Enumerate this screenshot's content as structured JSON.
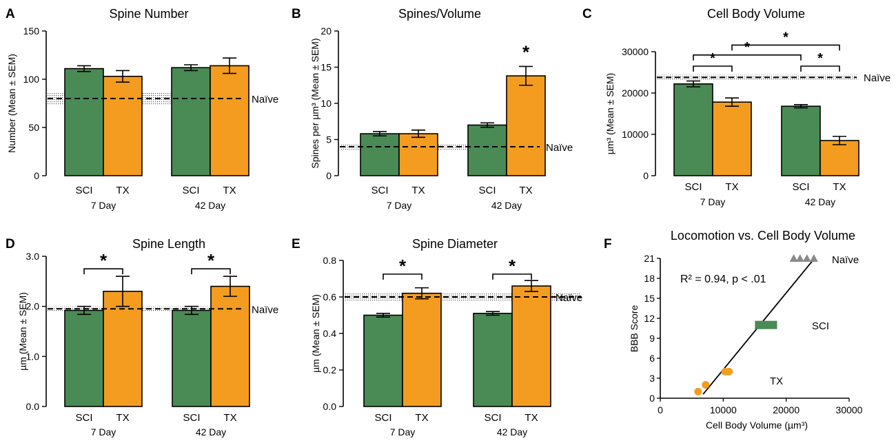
{
  "colors": {
    "sci": "#4a8a55",
    "tx": "#f39c1f",
    "naive_marker": "#8a8a8a",
    "axis": "#000000"
  },
  "chart_data": [
    {
      "panel": "A",
      "type": "bar",
      "title": "Spine Number",
      "ylabel": "Number (Mean ± SEM)",
      "ylim": [
        0,
        150
      ],
      "yticks": [
        0,
        50,
        100,
        150
      ],
      "groups": [
        "7 Day",
        "42 Day"
      ],
      "categories": [
        "SCI",
        "TX"
      ],
      "series": [
        {
          "name": "SCI",
          "values": [
            111,
            112
          ],
          "errors": [
            3,
            3
          ]
        },
        {
          "name": "TX",
          "values": [
            103,
            114
          ],
          "errors": [
            6,
            8
          ]
        }
      ],
      "reference": {
        "label": "Naïve",
        "value": 80,
        "sem": 6
      },
      "sig": []
    },
    {
      "panel": "B",
      "type": "bar",
      "title": "Spines/Volume",
      "ylabel": "Spines per µm³ (Mean ± SEM)",
      "ylim": [
        0,
        20
      ],
      "yticks": [
        0,
        5,
        10,
        15,
        20
      ],
      "groups": [
        "7 Day",
        "42 Day"
      ],
      "categories": [
        "SCI",
        "TX"
      ],
      "series": [
        {
          "name": "SCI",
          "values": [
            5.8,
            7.0
          ],
          "errors": [
            0.3,
            0.3
          ]
        },
        {
          "name": "TX",
          "values": [
            5.8,
            13.8
          ],
          "errors": [
            0.5,
            1.3
          ]
        }
      ],
      "reference": {
        "label": "Naïve",
        "value": 4.0,
        "sem": 0.4
      },
      "sig": [
        {
          "type": "star",
          "group": 1,
          "label": "*"
        }
      ]
    },
    {
      "panel": "C",
      "type": "bar",
      "title": "Cell Body Volume",
      "ylabel": "µm³ (Mean ± SEM)",
      "ylim": [
        0,
        30000
      ],
      "yticks": [
        0,
        10000,
        20000,
        30000
      ],
      "groups": [
        "7 Day",
        "42 Day"
      ],
      "categories": [
        "SCI",
        "TX"
      ],
      "series": [
        {
          "name": "SCI",
          "values": [
            22200,
            16800
          ],
          "errors": [
            700,
            400
          ]
        },
        {
          "name": "TX",
          "values": [
            17800,
            8500
          ],
          "errors": [
            1000,
            1000
          ]
        }
      ],
      "reference": {
        "label": "Naïve",
        "value": 23800,
        "sem": 600
      },
      "sig": [
        {
          "type": "bracket",
          "from": [
            0,
            0
          ],
          "to": [
            0,
            1
          ],
          "level": 26500,
          "label": "*"
        },
        {
          "type": "bracket",
          "from": [
            1,
            0
          ],
          "to": [
            1,
            1
          ],
          "level": 26500,
          "label": "*"
        },
        {
          "type": "bracket",
          "from": [
            0,
            0
          ],
          "to": [
            1,
            0
          ],
          "level": 29200,
          "label": "*"
        },
        {
          "type": "bracket",
          "from": [
            0,
            1
          ],
          "to": [
            1,
            1
          ],
          "level": 31600,
          "label": "*"
        }
      ]
    },
    {
      "panel": "D",
      "type": "bar",
      "title": "Spine Length",
      "ylabel": "µm (Mean ± SEM)",
      "ylim": [
        0,
        3.0
      ],
      "yticks": [
        "0.0",
        "1.0",
        "2.0",
        "3.0"
      ],
      "groups": [
        "7 Day",
        "42 Day"
      ],
      "categories": [
        "SCI",
        "TX"
      ],
      "series": [
        {
          "name": "SCI",
          "values": [
            1.92,
            1.92
          ],
          "errors": [
            0.08,
            0.08
          ]
        },
        {
          "name": "TX",
          "values": [
            2.3,
            2.4
          ],
          "errors": [
            0.3,
            0.2
          ]
        }
      ],
      "reference": {
        "label": "Naïve",
        "value": 1.95,
        "sem": 0.05
      },
      "sig": [
        {
          "type": "bracket",
          "from": [
            0,
            0
          ],
          "to": [
            0,
            1
          ],
          "level": 2.75,
          "label": "*"
        },
        {
          "type": "bracket",
          "from": [
            1,
            0
          ],
          "to": [
            1,
            1
          ],
          "level": 2.75,
          "label": "*"
        }
      ]
    },
    {
      "panel": "E",
      "type": "bar",
      "title": "Spine Diameter",
      "ylabel": "µm (Mean ± SEM)",
      "ylim": [
        0,
        0.8
      ],
      "yticks": [
        "0.0",
        "0.2",
        "0.4",
        "0.6",
        "0.8"
      ],
      "groups": [
        "7 Day",
        "42 Day"
      ],
      "categories": [
        "SCI",
        "TX"
      ],
      "series": [
        {
          "name": "SCI",
          "values": [
            0.5,
            0.51
          ],
          "errors": [
            0.01,
            0.01
          ]
        },
        {
          "name": "TX",
          "values": [
            0.62,
            0.66
          ],
          "errors": [
            0.03,
            0.03
          ]
        }
      ],
      "reference": {
        "label": "Naïve",
        "value": 0.6,
        "sem": 0.02
      },
      "sig": [
        {
          "type": "bracket",
          "from": [
            0,
            0
          ],
          "to": [
            0,
            1
          ],
          "level": 0.725,
          "label": "*"
        },
        {
          "type": "bracket",
          "from": [
            1,
            0
          ],
          "to": [
            1,
            1
          ],
          "level": 0.725,
          "label": "*"
        }
      ]
    },
    {
      "panel": "F",
      "type": "scatter",
      "title": "Locomotion vs. Cell Body Volume",
      "xlabel": "Cell Body Volume (µm³)",
      "ylabel": "BBB Score",
      "xlim": [
        0,
        30000
      ],
      "ylim": [
        0,
        21
      ],
      "xticks": [
        0,
        10000,
        20000,
        30000
      ],
      "yticks": [
        0,
        3,
        6,
        9,
        12,
        15,
        18,
        21
      ],
      "annotation": "R² = 0.94, p < .01",
      "fit": {
        "x": [
          6800,
          24500
        ],
        "y": [
          0.6,
          21
        ]
      },
      "series": [
        {
          "name": "Naïve",
          "marker": "triangle",
          "color": "#8a8a8a",
          "points": [
            [
              21200,
              21
            ],
            [
              22200,
              21
            ],
            [
              23300,
              21
            ],
            [
              24400,
              21
            ]
          ]
        },
        {
          "name": "SCI",
          "marker": "square",
          "color": "#4a8a55",
          "points": [
            [
              15700,
              11
            ],
            [
              16600,
              11
            ],
            [
              17900,
              11
            ]
          ]
        },
        {
          "name": "TX",
          "marker": "circle",
          "color": "#f39c1f",
          "points": [
            [
              6000,
              1
            ],
            [
              7200,
              2
            ],
            [
              10300,
              4
            ],
            [
              10900,
              4
            ]
          ]
        }
      ]
    }
  ]
}
